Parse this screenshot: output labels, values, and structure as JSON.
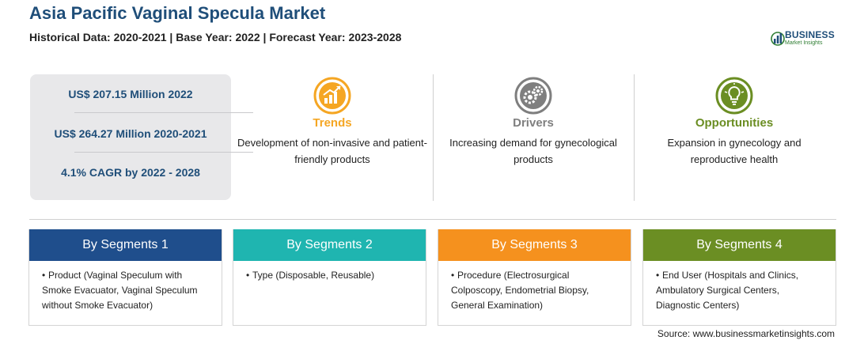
{
  "header": {
    "title": "Asia Pacific Vaginal Specula Market",
    "subtitle": "Historical Data: 2020-2021 | Base Year: 2022 | Forecast Year: 2023-2028"
  },
  "logo": {
    "main": "BUSINESS",
    "sub": "Market Insights"
  },
  "stats": [
    "US$ 207.15 Million 2022",
    "US$ 264.27 Million 2020-2021",
    "4.1% CAGR by 2022 - 2028"
  ],
  "columns": [
    {
      "title": "Trends",
      "text": "Development of non-invasive and patient-friendly products",
      "icon": "trend-chart-icon",
      "color": "#f5a623"
    },
    {
      "title": "Drivers",
      "text": "Increasing demand for gynecological products",
      "icon": "gears-icon",
      "color": "#7f7f7f"
    },
    {
      "title": "Opportunities",
      "text": "Expansion in gynecology and reproductive health",
      "icon": "lightbulb-icon",
      "color": "#6b8e23"
    }
  ],
  "segments": [
    {
      "title": "By Segments 1",
      "text": "Product (Vaginal Speculum with Smoke Evacuator, Vaginal Speculum without Smoke Evacuator)",
      "color": "#1f4e8c"
    },
    {
      "title": "By Segments 2",
      "text": "Type (Disposable, Reusable)",
      "color": "#1fb5b0"
    },
    {
      "title": "By Segments 3",
      "text": "Procedure (Electrosurgical Colposcopy, Endometrial Biopsy, General Examination)",
      "color": "#f5911e"
    },
    {
      "title": "By Segments 4",
      "text": "End User (Hospitals and Clinics, Ambulatory Surgical Centers, Diagnostic Centers)",
      "color": "#6b8e23"
    }
  ],
  "source": "Source: www.businessmarketinsights.com"
}
